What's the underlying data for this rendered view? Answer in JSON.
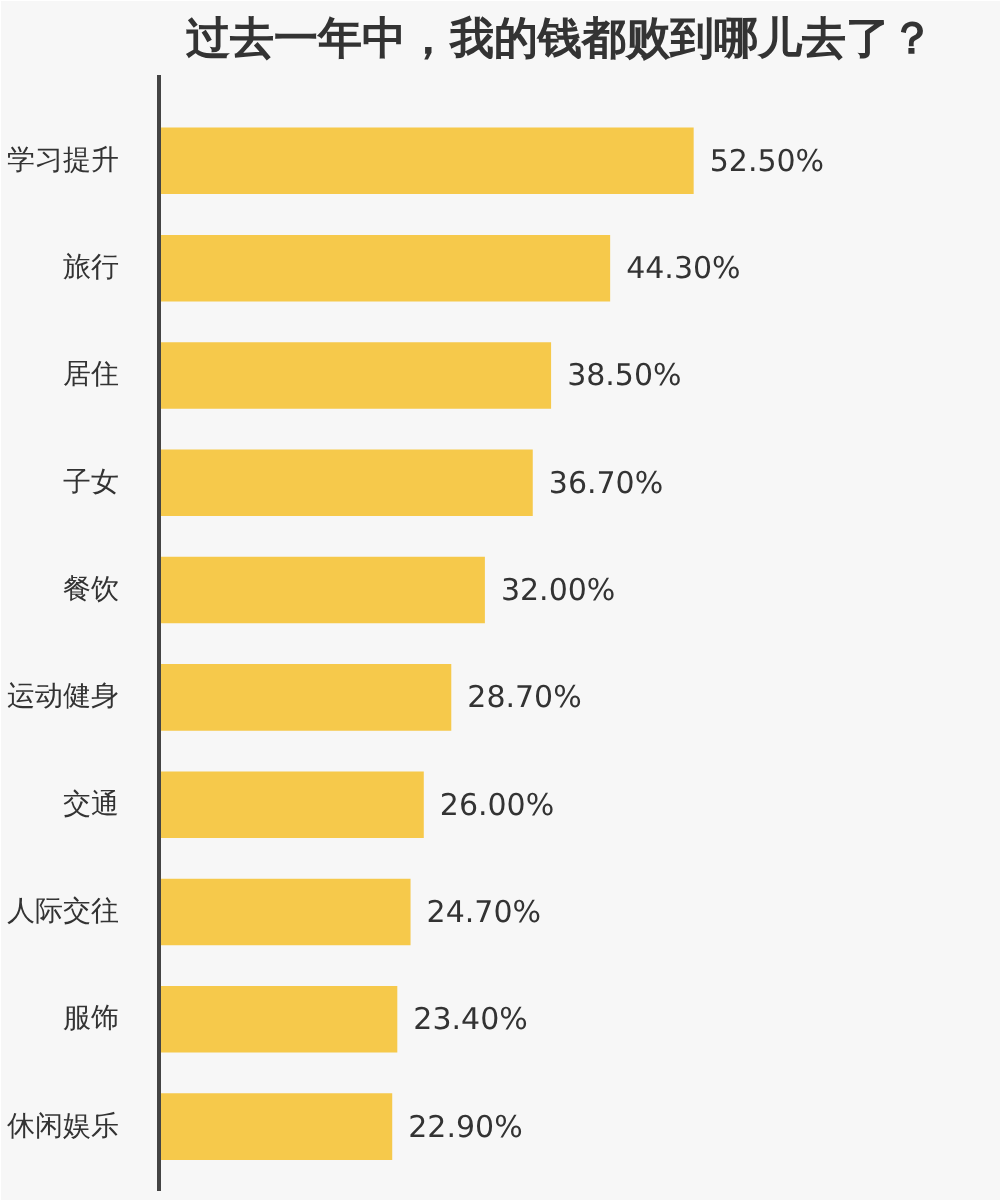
{
  "chart_data": {
    "type": "bar",
    "orientation": "horizontal",
    "title": "过去一年中，我的钱都败到哪儿去了？",
    "categories": [
      "学习提升",
      "旅行",
      "居住",
      "子女",
      "餐饮",
      "运动健身",
      "交通",
      "人际交往",
      "服饰",
      "休闲娱乐"
    ],
    "values": [
      52.5,
      44.3,
      38.5,
      36.7,
      32.0,
      28.7,
      26.0,
      24.7,
      23.4,
      22.9
    ],
    "value_labels": [
      "52.50%",
      "44.30%",
      "38.50%",
      "36.70%",
      "32.00%",
      "28.70%",
      "26.00%",
      "24.70%",
      "23.40%",
      "22.90%"
    ],
    "color": "#f6c94b",
    "grid": false
  }
}
